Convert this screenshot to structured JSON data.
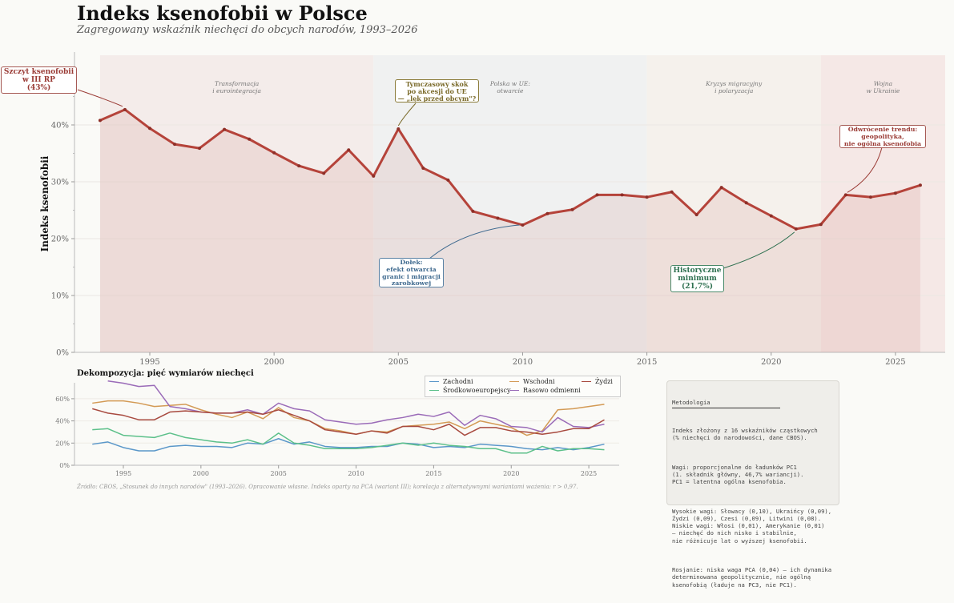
{
  "header": {
    "title": "Indeks ksenofobii w Polsce",
    "subtitle": "Zagregowany wskaźnik niechęci do obcych narodów, 1993–2026"
  },
  "chart_data": [
    {
      "type": "area",
      "title": "Indeks ksenofobii w Polsce",
      "ylabel": "Indeks ksenofobii",
      "xlabel": "",
      "ylim": [
        0,
        45
      ],
      "xlim": [
        1991.9,
        2027.2
      ],
      "yticks": [
        0,
        10,
        20,
        30,
        40
      ],
      "ytick_labels": [
        "0%",
        "10%",
        "20%",
        "30%",
        "40%"
      ],
      "xticks": [
        1995,
        2000,
        2005,
        2010,
        2015,
        2020,
        2025
      ],
      "xtick_labels": [
        "1995",
        "2000",
        "2005",
        "2010",
        "2015",
        "2020",
        "2025"
      ],
      "grid": true,
      "color": "#b5433a",
      "x": [
        1993,
        1994,
        1995,
        1996,
        1997,
        1998,
        1999,
        2000,
        2001,
        2002,
        2003,
        2004,
        2005,
        2006,
        2007,
        2008,
        2009,
        2010,
        2011,
        2012,
        2013,
        2014,
        2015,
        2016,
        2017,
        2018,
        2019,
        2020,
        2021,
        2022,
        2023,
        2024,
        2025,
        2026
      ],
      "values": [
        40.8,
        42.7,
        39.4,
        36.6,
        35.9,
        39.2,
        37.5,
        35.1,
        32.8,
        31.5,
        35.6,
        31.0,
        39.3,
        32.4,
        30.3,
        24.8,
        23.6,
        22.4,
        24.4,
        25.1,
        27.7,
        27.7,
        27.3,
        28.2,
        24.2,
        29.0,
        26.3,
        24.0,
        21.7,
        22.5,
        27.7,
        27.3,
        28.0,
        29.4
      ],
      "periods": [
        {
          "label": "Transformacja\ni eurointegracja",
          "start": 1993,
          "end": 2004,
          "color": "#f4ecea"
        },
        {
          "label": "Polska w UE:\notwarcie",
          "start": 2004,
          "end": 2015,
          "color": "#f0f1f1"
        },
        {
          "label": "Kryzys migracyjny\ni polaryzacja",
          "start": 2015,
          "end": 2022,
          "color": "#f5f1ec"
        },
        {
          "label": "Wojna\nw Ukrainie",
          "start": 2022,
          "end": 2027,
          "color": "#f5e8e6"
        }
      ],
      "annotations": [
        {
          "text": "Szczyt ksenofobii\nw III RP\n(43%)",
          "x": 1994,
          "y": 42.7,
          "color": "#9a3b35"
        },
        {
          "text": "Tymczasowy skok\npo akcesji do UE\n— „lęk przed obcym\"?",
          "x": 2005,
          "y": 39.3,
          "color": "#7a6a2a"
        },
        {
          "text": "Dołek:\nefekt otwarcia\ngranic i migracji\nzarobkowej",
          "x": 2010,
          "y": 22.4,
          "color": "#3f6a8f"
        },
        {
          "text": "Historyczne\nminimum\n(21,7%)",
          "x": 2021,
          "y": 21.7,
          "color": "#2e7050"
        },
        {
          "text": "Odwrócenie trendu:\ngeopolityka,\nnie ogólna ksenofobia",
          "x": 2023,
          "y": 27.7,
          "color": "#9a3b35"
        }
      ]
    },
    {
      "type": "line",
      "title": "Dekompozycja: pięć wymiarów niechęci",
      "ylim": [
        0,
        80
      ],
      "xlim": [
        1992,
        2027.5
      ],
      "yticks": [
        0,
        20,
        40,
        60
      ],
      "ytick_labels": [
        "0%",
        "20%",
        "40%",
        "60%"
      ],
      "xticks": [
        1995,
        2000,
        2005,
        2010,
        2015,
        2020,
        2025
      ],
      "xtick_labels": [
        "1995",
        "2000",
        "2005",
        "2010",
        "2015",
        "2020",
        "2025"
      ],
      "legend": "top-right",
      "x": [
        1993,
        1994,
        1995,
        1996,
        1997,
        1998,
        1999,
        2000,
        2001,
        2002,
        2003,
        2004,
        2005,
        2006,
        2007,
        2008,
        2009,
        2010,
        2011,
        2012,
        2013,
        2014,
        2015,
        2016,
        2017,
        2018,
        2019,
        2020,
        2021,
        2022,
        2023,
        2024,
        2025,
        2026
      ],
      "series": [
        {
          "name": "Zachodni",
          "color": "#5a97c9",
          "values": [
            19,
            21,
            16,
            13,
            13,
            17,
            18,
            17,
            17,
            16,
            20,
            19,
            24,
            19,
            21,
            17,
            16,
            16,
            17,
            17,
            20,
            19,
            16,
            17,
            16,
            19,
            18,
            17,
            15,
            14,
            16,
            14,
            16,
            19
          ]
        },
        {
          "name": "Środkowoeuropejscy",
          "color": "#5cc08a",
          "values": [
            32,
            33,
            27,
            26,
            25,
            29,
            25,
            23,
            21,
            20,
            23,
            19,
            29,
            20,
            18,
            15,
            15,
            15,
            16,
            18,
            20,
            18,
            20,
            18,
            17,
            15,
            15,
            11,
            11,
            17,
            13,
            15,
            15,
            14
          ]
        },
        {
          "name": "Wschodni",
          "color": "#d39a55",
          "values": [
            56,
            58,
            58,
            56,
            53,
            54,
            55,
            50,
            46,
            43,
            48,
            42,
            52,
            43,
            40,
            33,
            31,
            28,
            31,
            30,
            35,
            36,
            37,
            39,
            33,
            40,
            37,
            34,
            27,
            31,
            50,
            51,
            53,
            55
          ]
        },
        {
          "name": "Rasowo odmienni",
          "color": "#9a6bb8",
          "values": [
            null,
            76,
            74,
            71,
            72,
            53,
            51,
            48,
            47,
            47,
            50,
            46,
            56,
            51,
            49,
            41,
            39,
            37,
            38,
            41,
            43,
            46,
            44,
            48,
            36,
            45,
            42,
            35,
            34,
            30,
            43,
            35,
            34,
            37
          ]
        },
        {
          "name": "Żydzi",
          "color": "#a84a3f",
          "values": [
            51,
            47,
            45,
            41,
            41,
            48,
            49,
            48,
            47,
            47,
            48,
            46,
            50,
            45,
            40,
            32,
            30,
            28,
            31,
            29,
            35,
            35,
            32,
            37,
            27,
            34,
            34,
            31,
            30,
            28,
            30,
            33,
            33,
            41
          ]
        }
      ]
    }
  ],
  "methodology": {
    "heading": "Metodologia",
    "paragraphs": [
      "Indeks złożony z 16 wskaźników cząstkowych\n(% niechęci do narodowości, dane CBOS).",
      "Wagi: proporcjonalne do ładunków PC1\n(1. składnik główny, 46,7% wariancji).\nPC1 = latentna ogólna ksenofobia.",
      "Wysokie wagi: Słowacy (0,10), Ukraińcy (0,09),\nŻydzi (0,09), Czesi (0,09), Litwini (0,08).\nNiskie wagi: Włosi (0,01), Amerykanie (0,01)\n— niechęć do nich nisko i stabilnie,\nnie różnicuje lat o wyższej ksenofobii.",
      "Rosjanie: niska waga PCA (0,04) — ich dynamika\ndeterminowana geopolitycznie, nie ogólną\nksenofobią (ładuje na PC3, nie PC1)."
    ]
  },
  "source": "Źródło: CBOS, „Stosunek do innych narodów\" (1993–2026). Opracowanie własne. Indeks oparty na PCA (wariant III); korelacja z alternatywnymi wariantami ważenia: r > 0,97."
}
